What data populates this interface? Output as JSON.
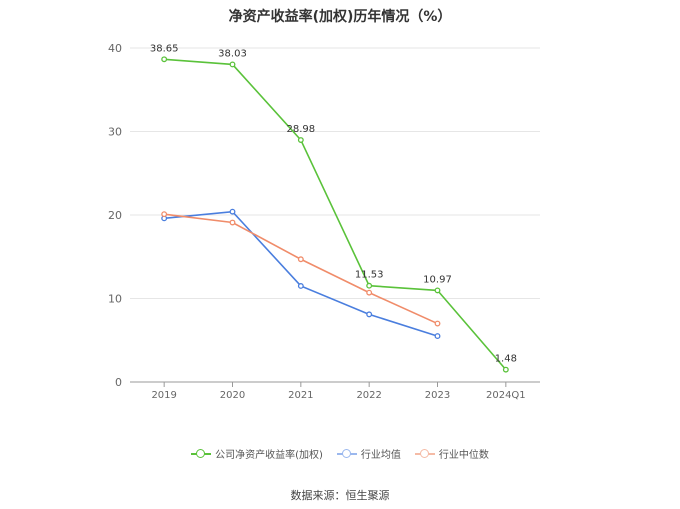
{
  "chart_data": {
    "type": "line",
    "title": "净资产收益率(加权)历年情况（%）",
    "categories": [
      "2019",
      "2020",
      "2021",
      "2022",
      "2023",
      "2024Q1"
    ],
    "ylim": [
      0,
      40
    ],
    "yticks": [
      0,
      10,
      20,
      30,
      40
    ],
    "grid": true,
    "legend_position": "bottom",
    "series": [
      {
        "name": "公司净资产收益率(加权)",
        "color": "#5ac23a",
        "values": [
          38.65,
          38.03,
          28.98,
          11.53,
          10.97,
          1.48
        ],
        "labels": [
          "38.65",
          "38.03",
          "28.98",
          "11.53",
          "10.97",
          "1.48"
        ]
      },
      {
        "name": "行业均值",
        "color": "#4a7ede",
        "values": [
          19.6,
          20.4,
          11.5,
          8.1,
          5.5,
          null
        ]
      },
      {
        "name": "行业中位数",
        "color": "#f08c6a",
        "values": [
          20.1,
          19.1,
          14.7,
          10.7,
          7.0,
          null
        ]
      }
    ],
    "source": "数据来源：恒生聚源"
  }
}
